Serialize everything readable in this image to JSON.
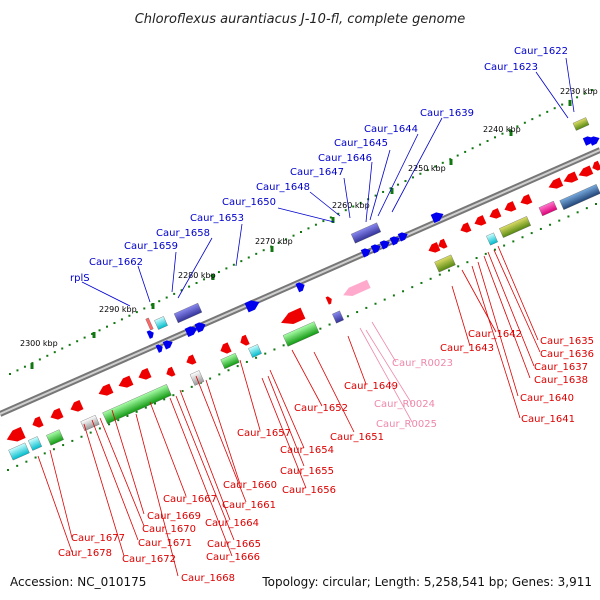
{
  "title": "Chloroflexus aurantiacus J-10-fl, complete genome",
  "footer": {
    "accession": "Accession: NC_010175",
    "summary": "Topology: circular; Length: 5,258,541 bp; Genes: 3,911"
  },
  "colors": {
    "plus_label": "#0000cc",
    "minus_label": "#dd0000",
    "rna_label": "#ee88aa",
    "plus_gene": "#0000ee",
    "minus_gene": "#ee0000",
    "rna_gene": "#ffaacc",
    "backbone": "#888888",
    "tick": "#117711"
  },
  "scale_labels": [
    {
      "text": "2230 kbp"
    },
    {
      "text": "2240 kbp"
    },
    {
      "text": "2250 kbp"
    },
    {
      "text": "2260 kbp"
    },
    {
      "text": "2270 kbp"
    },
    {
      "text": "2280 kbp"
    },
    {
      "text": "2290 kbp"
    },
    {
      "text": "2300 kbp"
    }
  ],
  "plus_labels": [
    "Caur_1622",
    "Caur_1623",
    "Caur_1639",
    "Caur_1644",
    "Caur_1645",
    "Caur_1646",
    "Caur_1647",
    "Caur_1648",
    "Caur_1650",
    "Caur_1653",
    "Caur_1658",
    "Caur_1659",
    "Caur_1662",
    "rplS"
  ],
  "minus_labels": [
    "Caur_1635",
    "Caur_1636",
    "Caur_1637",
    "Caur_1638",
    "Caur_1640",
    "Caur_1641",
    "Caur_1642",
    "Caur_1643",
    "Caur_1649",
    "Caur_1651",
    "Caur_1652",
    "Caur_1654",
    "Caur_1655",
    "Caur_1656",
    "Caur_1657",
    "Caur_1660",
    "Caur_1661",
    "Caur_1664",
    "Caur_1665",
    "Caur_1666",
    "Caur_1667",
    "Caur_1668",
    "Caur_1669",
    "Caur_1670",
    "Caur_1671",
    "Caur_1672",
    "Caur_1677",
    "Caur_1678"
  ],
  "rna_labels": [
    "Caur_R0023",
    "Caur_R0024",
    "Caur_R0025"
  ]
}
